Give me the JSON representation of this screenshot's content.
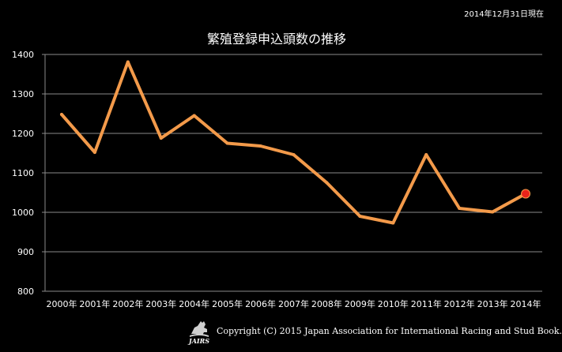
{
  "date_note": "2014年12月31日現在",
  "title": "繁殖登録申込頭数の推移",
  "copyright": "Copyright (C) 2015 Japan Association for International Racing and Stud Book.",
  "logo_text": "JAIRS",
  "colors": {
    "background": "#000000",
    "plot_background": "#000000",
    "line": "#f39a4a",
    "last_point": "#e8231a",
    "grid": "#8a8a8a",
    "text": "#ffffff"
  },
  "chart_data": {
    "type": "line",
    "title": "繁殖登録申込頭数の推移",
    "xlabel": "",
    "ylabel": "",
    "categories": [
      "2000年",
      "2001年",
      "2002年",
      "2003年",
      "2004年",
      "2005年",
      "2006年",
      "2007年",
      "2008年",
      "2009年",
      "2010年",
      "2011年",
      "2012年",
      "2013年",
      "2014年"
    ],
    "series": [
      {
        "values": [
          1248,
          1152,
          1381,
          1188,
          1245,
          1175,
          1168,
          1146,
          1075,
          990,
          973,
          1146,
          1010,
          1001,
          1047
        ]
      }
    ],
    "ylim": [
      800,
      1400
    ],
    "yticks": [
      800,
      900,
      1000,
      1100,
      1200,
      1300,
      1400
    ],
    "grid": true,
    "legend": "none",
    "highlight_last_point": true
  }
}
